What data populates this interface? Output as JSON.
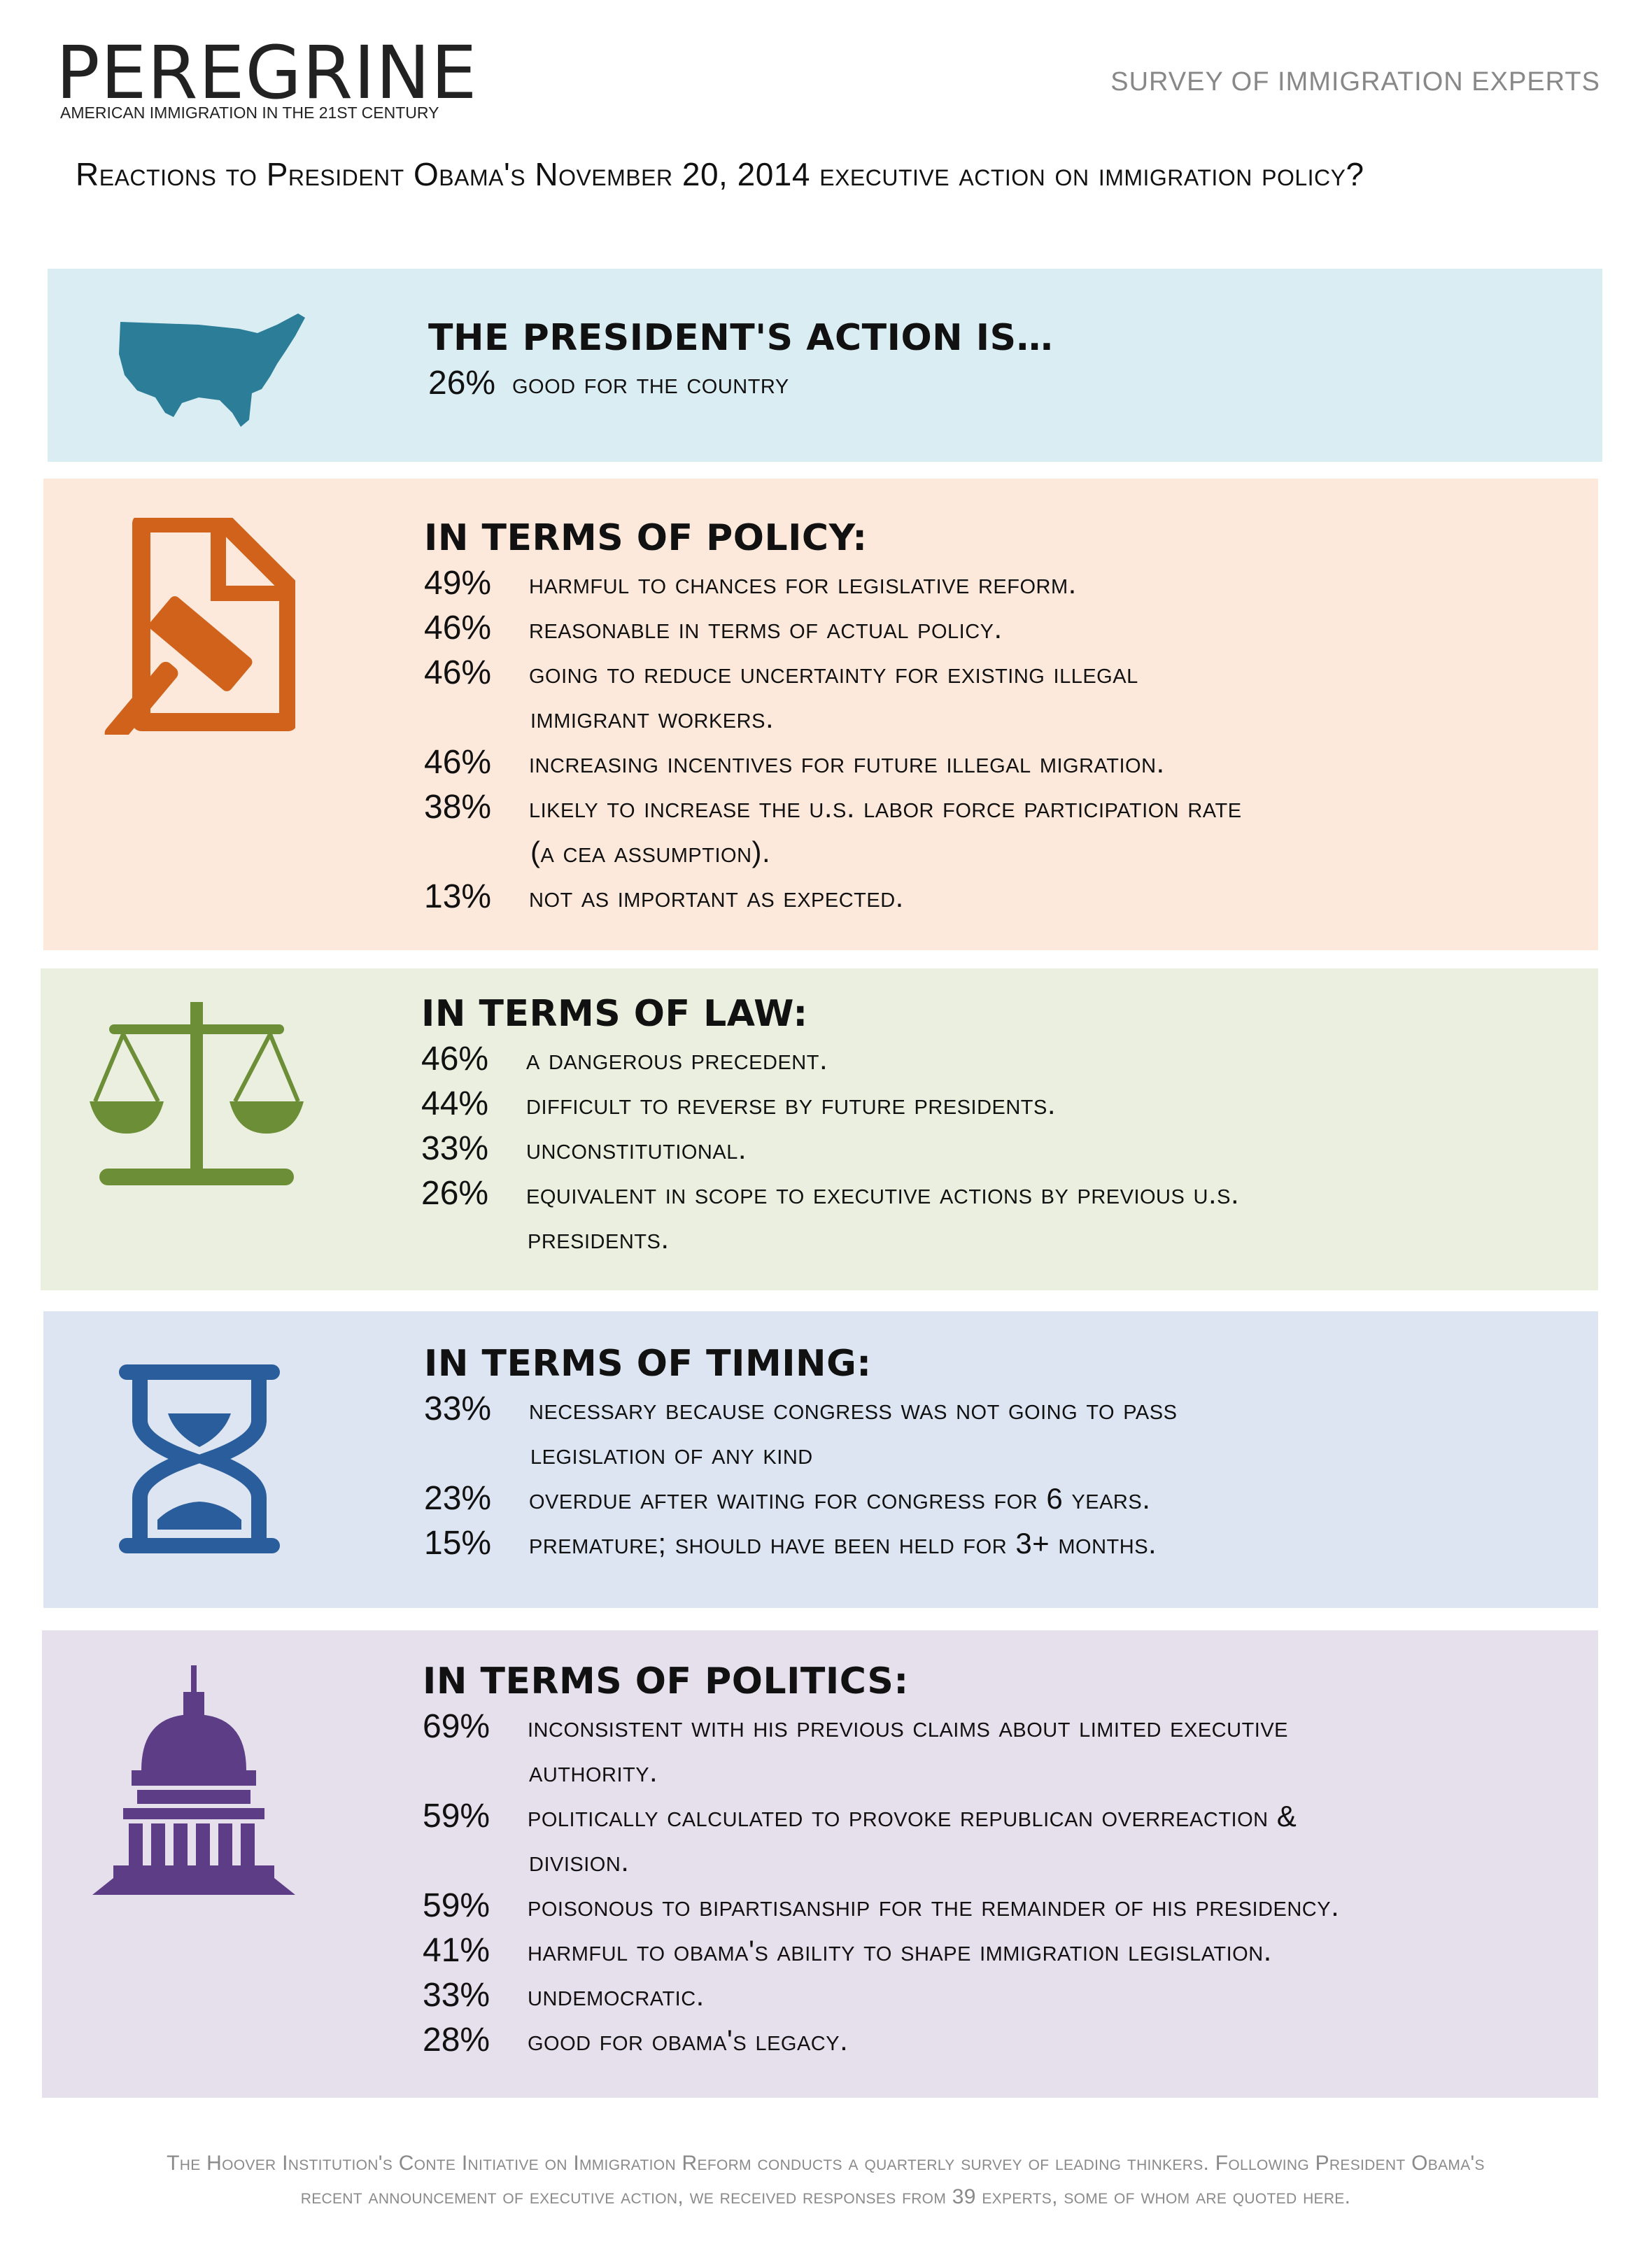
{
  "header": {
    "logo_text": "PEREGRINE",
    "logo_tagline": "AMERICAN IMMIGRATION IN THE 21ST CENTURY",
    "survey_label": "SURVEY OF IMMIGRATION EXPERTS"
  },
  "question": "Reactions to President Obama's November 20, 2014 executive action on immigration policy?",
  "sections": [
    {
      "heading": "THE PRESIDENT'S ACTION IS…",
      "icon": "usa-map-icon",
      "color": "#daedf3",
      "items": [
        {
          "pct": "26%",
          "text": "good for the country"
        }
      ]
    },
    {
      "heading": "IN TERMS OF POLICY:",
      "icon": "gavel-document-icon",
      "color": "#fce9dc",
      "items": [
        {
          "pct": "49%",
          "text": "harmful to chances for legislative reform."
        },
        {
          "pct": "46%",
          "text": "reasonable in terms of actual policy."
        },
        {
          "pct": "46%",
          "text": "going to reduce uncertainty for existing illegal",
          "cont": "immigrant workers."
        },
        {
          "pct": "46%",
          "text": "increasing incentives for future illegal migration."
        },
        {
          "pct": "38%",
          "text": "likely to increase the U.S. labor force participation rate",
          "cont": "(a CEA assumption)."
        },
        {
          "pct": "13%",
          "text": "not as important as expected."
        }
      ]
    },
    {
      "heading": "IN TERMS OF LAW:",
      "icon": "scales-icon",
      "color": "#ebefdf",
      "items": [
        {
          "pct": "46%",
          "text": "a dangerous precedent."
        },
        {
          "pct": "44%",
          "text": "difficult to reverse by future presidents."
        },
        {
          "pct": "33%",
          "text": "unconstitutional."
        },
        {
          "pct": "26%",
          "text": "equivalent in scope to executive actions by previous U.S.",
          "cont": "presidents."
        }
      ]
    },
    {
      "heading": "IN TERMS OF TIMING:",
      "icon": "hourglass-icon",
      "color": "#dce5f1",
      "items": [
        {
          "pct": "33%",
          "text": "necessary because Congress was not going to pass",
          "cont": "legislation of any kind"
        },
        {
          "pct": "23%",
          "text": "overdue after waiting for Congress for 6 years."
        },
        {
          "pct": "15%",
          "text": "premature; should have been held for 3+ months."
        }
      ]
    },
    {
      "heading": "IN TERMS OF POLITICS:",
      "icon": "capitol-icon",
      "color": "#e6e0ed",
      "items": [
        {
          "pct": "69%",
          "text": "inconsistent with his previous claims about limited executive",
          "cont": "authority."
        },
        {
          "pct": "59%",
          "text": "politically calculated to provoke Republican overreaction &",
          "cont": "division."
        },
        {
          "pct": "59%",
          "text": "poisonous to bipartisanship for the remainder of his presidency."
        },
        {
          "pct": "41%",
          "text": "harmful to Obama's ability to shape immigration legislation."
        },
        {
          "pct": "33%",
          "text": "undemocratic."
        },
        {
          "pct": "28%",
          "text": "good for Obama's legacy."
        }
      ]
    }
  ],
  "footer": {
    "line1": "The Hoover Institution's Conte Initiative on Immigration Reform conducts a quarterly survey of leading thinkers. Following President Obama's",
    "line2": "recent announcement of executive action, we received responses from 39 experts, some of whom are quoted here."
  }
}
